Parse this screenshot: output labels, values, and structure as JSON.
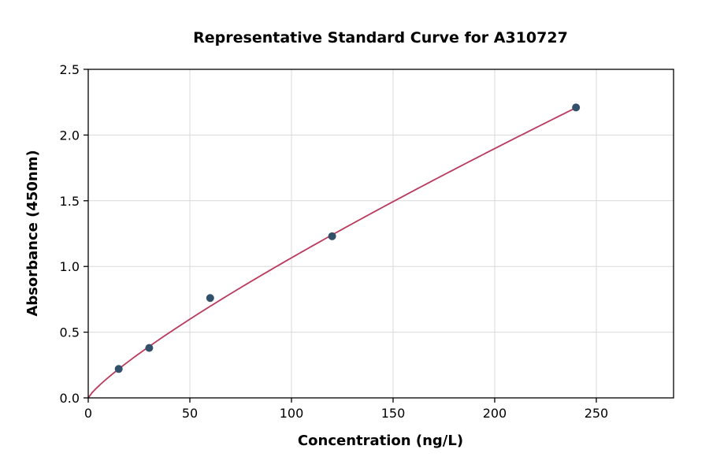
{
  "chart_data": {
    "type": "scatter",
    "title": "Representative Standard Curve for A310727",
    "xlabel": "Concentration (ng/L)",
    "ylabel": "Absorbance (450nm)",
    "x": [
      15,
      30,
      60,
      120,
      240
    ],
    "y": [
      0.22,
      0.38,
      0.76,
      1.23,
      2.21
    ],
    "curve_fit": {
      "type": "power",
      "a": 0.0231,
      "b": 0.832,
      "x_start": 0,
      "x_end": 240
    },
    "xlim": [
      0,
      288
    ],
    "ylim": [
      0,
      2.5
    ],
    "xticks": [
      0,
      50,
      100,
      150,
      200,
      250
    ],
    "yticks": [
      0.0,
      0.5,
      1.0,
      1.5,
      2.0,
      2.5
    ],
    "grid": true,
    "legend": "none",
    "colors": {
      "curve": "#b93a5c",
      "point": "#33506b",
      "grid": "#d9d9d9",
      "axis": "#000000",
      "background": "#ffffff"
    }
  }
}
